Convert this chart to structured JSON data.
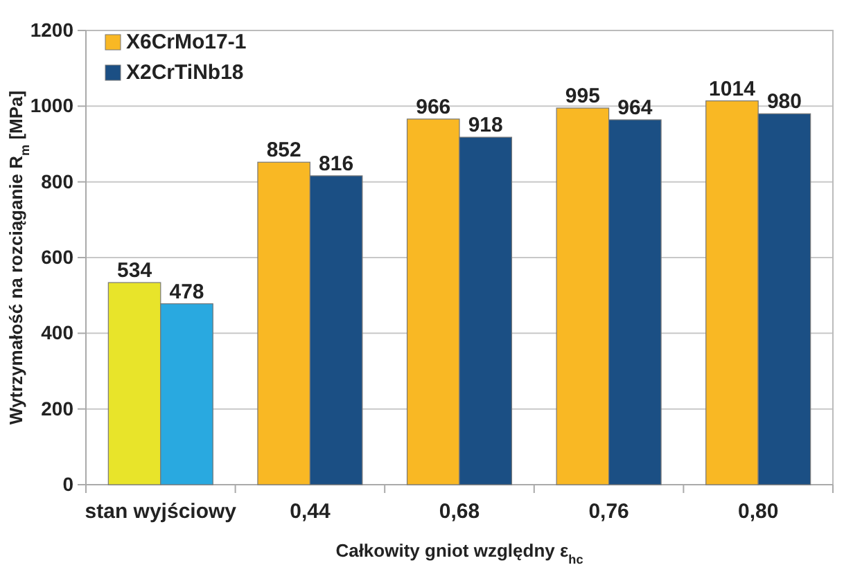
{
  "chart_data": {
    "type": "bar",
    "xlabel": "Całkowity gniot względny ε$_{hc}$",
    "ylabel": "Wytrzymałość na rozciąganie R$_{m}$ [MPa]",
    "categories": [
      "stan wyjściowy",
      "0,44",
      "0,68",
      "0,76",
      "0,80"
    ],
    "series": [
      {
        "name": "X6CrMo17-1",
        "color": "#f9b824",
        "colors": [
          "#e8e42a",
          "#f9b824",
          "#f9b824",
          "#f9b824",
          "#f9b824"
        ],
        "values": [
          534,
          852,
          966,
          995,
          1014
        ]
      },
      {
        "name": "X2CrTiNb18",
        "color": "#1b4f84",
        "colors": [
          "#29a9e0",
          "#1b4f84",
          "#1b4f84",
          "#1b4f84",
          "#1b4f84"
        ],
        "values": [
          478,
          816,
          918,
          964,
          980
        ]
      }
    ],
    "ylim": [
      0,
      1200
    ],
    "yticks": [
      0,
      200,
      400,
      600,
      800,
      1000,
      1200
    ],
    "grid": "y",
    "legend": "top left",
    "data_labels": true
  }
}
